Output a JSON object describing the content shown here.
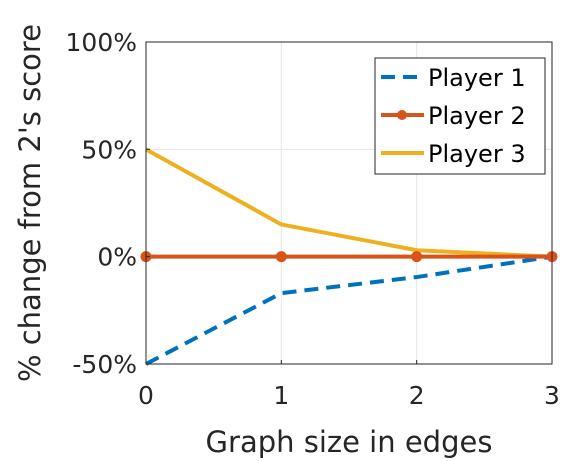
{
  "chart_data": {
    "type": "line",
    "xlabel": "Graph size in edges",
    "ylabel": "% change from 2's score",
    "x": [
      0,
      1,
      2,
      3
    ],
    "xticks": [
      "0",
      "1",
      "2",
      "3"
    ],
    "yticks": [
      {
        "value": -50,
        "label": "-50%"
      },
      {
        "value": 0,
        "label": "0%"
      },
      {
        "value": 50,
        "label": "50%"
      },
      {
        "value": 100,
        "label": "100%"
      }
    ],
    "xlim": [
      0,
      3
    ],
    "ylim": [
      -50,
      100
    ],
    "grid": true,
    "legend_position": "top-right",
    "series": [
      {
        "name": "Player 1",
        "values": [
          -50,
          -17,
          -9.5,
          0
        ],
        "color": "#0072BD",
        "style": "dashed",
        "marker": "none"
      },
      {
        "name": "Player 2",
        "values": [
          0,
          0,
          0,
          0
        ],
        "color": "#D95319",
        "style": "solid",
        "marker": "circle"
      },
      {
        "name": "Player 3",
        "values": [
          50,
          15,
          3,
          0
        ],
        "color": "#EDB120",
        "style": "solid",
        "marker": "none"
      }
    ]
  }
}
